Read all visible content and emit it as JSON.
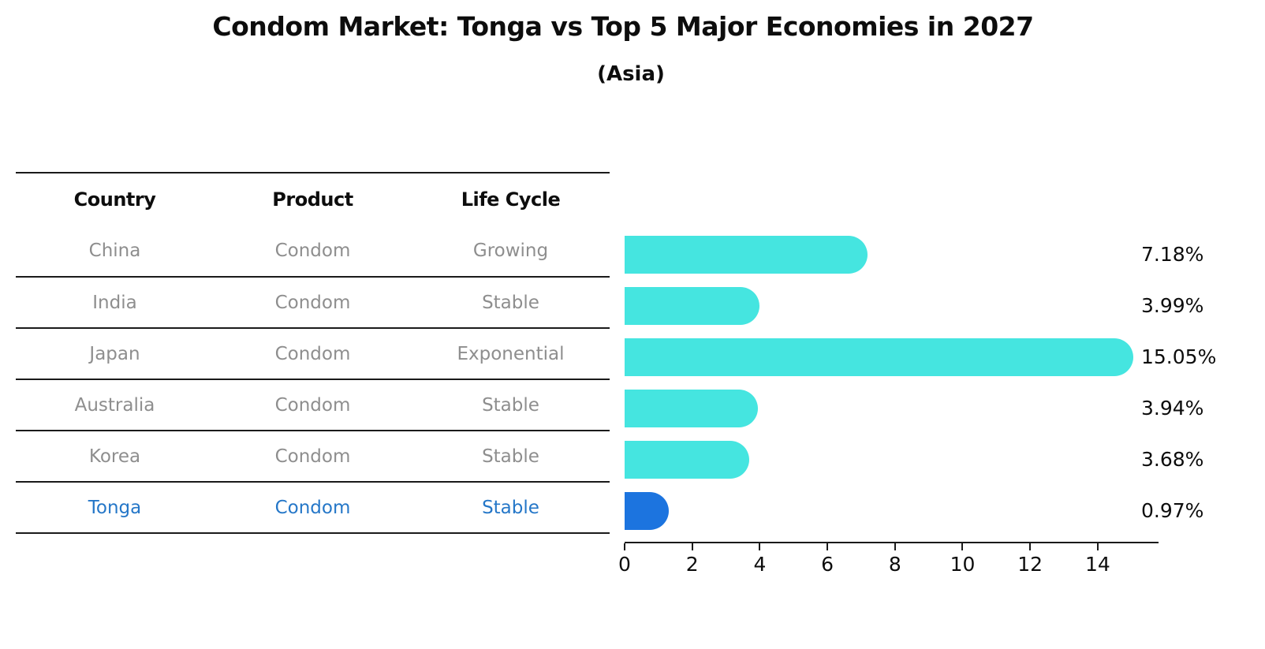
{
  "title": "Condom Market: Tonga vs Top 5 Major Economies in 2027",
  "subtitle": "(Asia)",
  "table": {
    "headers": [
      "Country",
      "Product",
      "Life Cycle"
    ],
    "rows": [
      {
        "country": "China",
        "product": "Condom",
        "life_cycle": "Growing",
        "highlight": false
      },
      {
        "country": "India",
        "product": "Condom",
        "life_cycle": "Stable",
        "highlight": false
      },
      {
        "country": "Japan",
        "product": "Condom",
        "life_cycle": "Exponential",
        "highlight": false
      },
      {
        "country": "Australia",
        "product": "Condom",
        "life_cycle": "Stable",
        "highlight": false
      },
      {
        "country": "Korea",
        "product": "Condom",
        "life_cycle": "Stable",
        "highlight": false
      },
      {
        "country": "Tonga",
        "product": "Condom",
        "life_cycle": "Stable",
        "highlight": true
      }
    ]
  },
  "chart_data": {
    "type": "bar",
    "orientation": "horizontal",
    "title": "Condom Market: Tonga vs Top 5 Major Economies in 2027",
    "subtitle": "(Asia)",
    "categories": [
      "China",
      "India",
      "Japan",
      "Australia",
      "Korea",
      "Tonga"
    ],
    "values": [
      7.18,
      3.99,
      15.05,
      3.94,
      3.68,
      0.97
    ],
    "value_labels": [
      "7.18%",
      "3.99%",
      "15.05%",
      "3.94%",
      "3.68%",
      "0.97%"
    ],
    "xlabel": "",
    "ylabel": "",
    "xlim": [
      0,
      15.8
    ],
    "x_ticks": [
      0,
      2,
      4,
      6,
      8,
      10,
      12,
      14
    ],
    "grid": false,
    "legend": false,
    "highlight_index": 5
  },
  "colors": {
    "bar": "#45e5e0",
    "highlight_bar": "#1c74df",
    "highlight_text": "#2577c8",
    "table_text": "#8e8e8e",
    "axis": "#1a1a1a",
    "text": "#0d0d0d"
  }
}
